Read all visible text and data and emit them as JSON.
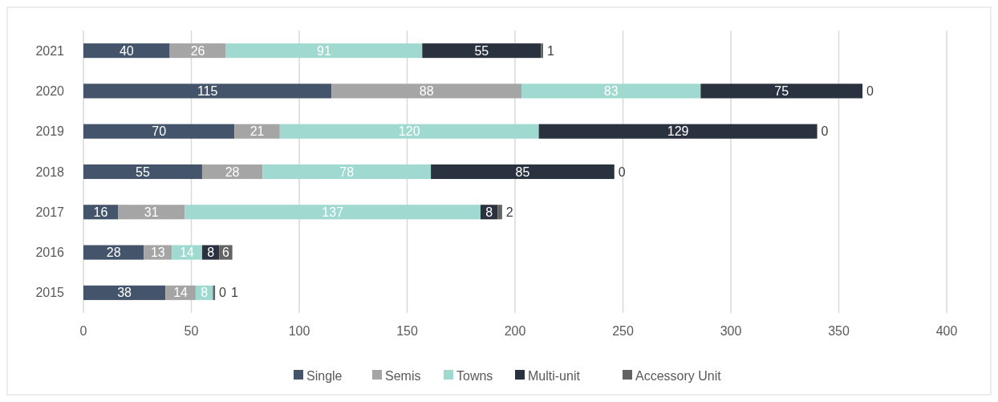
{
  "chart_data": {
    "type": "bar",
    "orientation": "horizontal",
    "stacked": true,
    "categories": [
      "2021",
      "2020",
      "2019",
      "2018",
      "2017",
      "2016",
      "2015"
    ],
    "series": [
      {
        "name": "Single",
        "color": "#44546a",
        "values": [
          40,
          115,
          70,
          55,
          16,
          28,
          38
        ]
      },
      {
        "name": "Semis",
        "color": "#a5a5a5",
        "values": [
          26,
          88,
          21,
          28,
          31,
          13,
          14
        ]
      },
      {
        "name": "Towns",
        "color": "#a0d9d0",
        "values": [
          91,
          83,
          120,
          78,
          137,
          14,
          8
        ]
      },
      {
        "name": "Multi-unit",
        "color": "#2a3240",
        "values": [
          55,
          75,
          129,
          85,
          8,
          8,
          0
        ]
      },
      {
        "name": "Accessory Unit",
        "color": "#636363",
        "values": [
          1,
          0,
          0,
          0,
          2,
          6,
          1
        ]
      }
    ],
    "xlim": [
      0,
      400
    ],
    "xticks": [
      0,
      50,
      100,
      150,
      200,
      250,
      300,
      350,
      400
    ],
    "grid": "x",
    "legend": "bottom",
    "data_labels": true
  }
}
